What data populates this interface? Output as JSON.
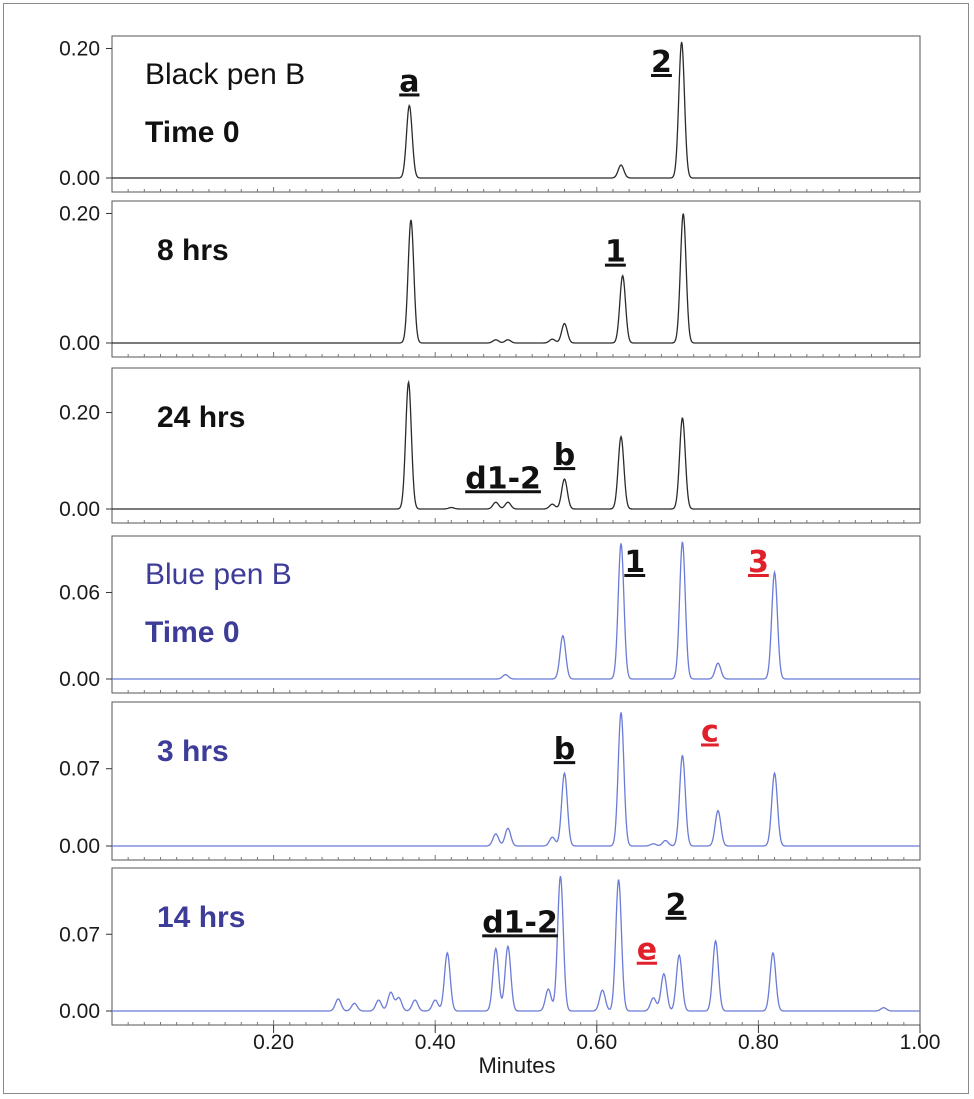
{
  "chart_data": {
    "type": "line",
    "xlabel": "Minutes",
    "xlim": [
      0.0,
      1.0
    ],
    "xticks": [
      "0.20",
      "0.40",
      "0.60",
      "0.80",
      "1.00"
    ],
    "xtick_values": [
      0.2,
      0.4,
      0.6,
      0.8,
      1.0
    ],
    "panels": [
      {
        "title": "Black pen B",
        "subtitle": "Time 0",
        "series_color": "#2b2b2b",
        "title_color": "#111111",
        "ylim": [
          0,
          0.21
        ],
        "yticks": [
          {
            "value": 0.2,
            "label": "0.20"
          },
          {
            "value": 0.0,
            "label": "0.00"
          }
        ],
        "peaks": [
          [
            0.368,
            0.112
          ],
          [
            0.63,
            0.02
          ],
          [
            0.705,
            0.21
          ]
        ],
        "annotations": [
          {
            "text": "a",
            "x": 0.368,
            "y": 0.112,
            "color": "#111111"
          },
          {
            "text": "2",
            "x": 0.68,
            "y": 0.21,
            "color": "#111111"
          }
        ]
      },
      {
        "title": "",
        "subtitle": "8 hrs",
        "series_color": "#2b2b2b",
        "title_color": "#111111",
        "ylim": [
          0,
          0.21
        ],
        "yticks": [
          {
            "value": 0.2,
            "label": "0.20"
          },
          {
            "value": 0.0,
            "label": "0.00"
          }
        ],
        "peaks": [
          [
            0.37,
            0.19
          ],
          [
            0.475,
            0.005
          ],
          [
            0.49,
            0.005
          ],
          [
            0.545,
            0.006
          ],
          [
            0.56,
            0.03
          ],
          [
            0.632,
            0.104
          ],
          [
            0.707,
            0.2
          ]
        ],
        "annotations": [
          {
            "text": "1",
            "x": 0.623,
            "y": 0.104,
            "color": "#111111"
          }
        ]
      },
      {
        "title": "",
        "subtitle": "24 hrs",
        "series_color": "#2b2b2b",
        "title_color": "#111111",
        "ylim": [
          0,
          0.28
        ],
        "yticks": [
          {
            "value": 0.2,
            "label": "0.20"
          },
          {
            "value": 0.0,
            "label": "0.00"
          }
        ],
        "peaks": [
          [
            0.367,
            0.263
          ],
          [
            0.42,
            0.003
          ],
          [
            0.475,
            0.014
          ],
          [
            0.49,
            0.014
          ],
          [
            0.545,
            0.01
          ],
          [
            0.56,
            0.062
          ],
          [
            0.63,
            0.15
          ],
          [
            0.706,
            0.189
          ]
        ],
        "annotations": [
          {
            "text": "b",
            "x": 0.56,
            "y": 0.062,
            "color": "#111111"
          },
          {
            "text": "d1-2",
            "x": 0.484,
            "y": 0.014,
            "color": "#111111"
          }
        ]
      },
      {
        "title": "Blue pen B",
        "subtitle": "Time 0",
        "series_color": "#6b7bd6",
        "title_color": "#3d3d99",
        "ylim": [
          0,
          0.095
        ],
        "yticks": [
          {
            "value": 0.06,
            "label": "0.06"
          },
          {
            "value": 0.0,
            "label": "0.00"
          }
        ],
        "peaks": [
          [
            0.487,
            0.003
          ],
          [
            0.558,
            0.03
          ],
          [
            0.63,
            0.094
          ],
          [
            0.706,
            0.095
          ],
          [
            0.75,
            0.011
          ],
          [
            0.82,
            0.074
          ]
        ],
        "annotations": [
          {
            "text": "1",
            "x": 0.647,
            "y": 0.094,
            "color": "#111111"
          },
          {
            "text": "3",
            "x": 0.8,
            "y": 0.074,
            "color": "#e0202a"
          }
        ]
      },
      {
        "title": "",
        "subtitle": "3 hrs",
        "series_color": "#6b7bd6",
        "title_color": "#3d3d99",
        "ylim": [
          0,
          0.125
        ],
        "yticks": [
          {
            "value": 0.07,
            "label": "0.07"
          },
          {
            "value": 0.0,
            "label": "0.00"
          }
        ],
        "peaks": [
          [
            0.475,
            0.011
          ],
          [
            0.49,
            0.016
          ],
          [
            0.545,
            0.008
          ],
          [
            0.56,
            0.066
          ],
          [
            0.63,
            0.121
          ],
          [
            0.67,
            0.002
          ],
          [
            0.685,
            0.005
          ],
          [
            0.706,
            0.082
          ],
          [
            0.75,
            0.032
          ],
          [
            0.82,
            0.066
          ]
        ],
        "annotations": [
          {
            "text": "b",
            "x": 0.56,
            "y": 0.066,
            "color": "#111111"
          },
          {
            "text": "c",
            "x": 0.74,
            "y": 0.082,
            "color": "#e0202a"
          }
        ]
      },
      {
        "title": "",
        "subtitle": "14 hrs",
        "series_color": "#6b7bd6",
        "title_color": "#3d3d99",
        "ylim": [
          0,
          0.125
        ],
        "yticks": [
          {
            "value": 0.07,
            "label": "0.07"
          },
          {
            "value": 0.0,
            "label": "0.00"
          }
        ],
        "peaks": [
          [
            0.28,
            0.011
          ],
          [
            0.3,
            0.007
          ],
          [
            0.33,
            0.01
          ],
          [
            0.345,
            0.017
          ],
          [
            0.355,
            0.012
          ],
          [
            0.375,
            0.01
          ],
          [
            0.4,
            0.01
          ],
          [
            0.415,
            0.053
          ],
          [
            0.475,
            0.057
          ],
          [
            0.49,
            0.059
          ],
          [
            0.54,
            0.02
          ],
          [
            0.555,
            0.123
          ],
          [
            0.607,
            0.019
          ],
          [
            0.627,
            0.12
          ],
          [
            0.67,
            0.012
          ],
          [
            0.683,
            0.034
          ],
          [
            0.702,
            0.051
          ],
          [
            0.747,
            0.064
          ],
          [
            0.818,
            0.053
          ],
          [
            0.955,
            0.003
          ]
        ],
        "annotations": [
          {
            "text": "2",
            "x": 0.698,
            "y": 0.075,
            "color": "#111111"
          },
          {
            "text": "d1-2",
            "x": 0.505,
            "y": 0.059,
            "color": "#111111"
          },
          {
            "text": "e",
            "x": 0.662,
            "y": 0.034,
            "color": "#e0202a"
          }
        ]
      }
    ]
  }
}
